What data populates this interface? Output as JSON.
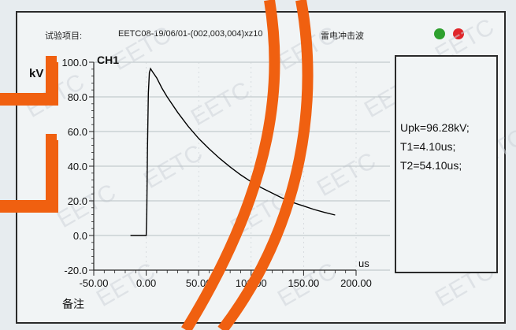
{
  "header": {
    "test_item_label": "试验项目:",
    "test_id": "EETC08-19/06/01-(002,003,004)xz10",
    "wave_type": "雷电冲击波"
  },
  "status_indicators": [
    {
      "name": "green-status-dot",
      "color": "#2ea02e"
    },
    {
      "name": "red-status-dot",
      "color": "#e0262a"
    }
  ],
  "results": {
    "upk": "Upk=96.28kV;",
    "t1": "T1=4.10us;",
    "t2": "T2=54.10us;"
  },
  "footer": {
    "remark_label": "备注"
  },
  "chart_data": {
    "type": "line",
    "title": "CH1",
    "ylabel": "kV",
    "xlabel": "us",
    "xlim": [
      -50,
      200
    ],
    "ylim": [
      -20,
      100
    ],
    "x_ticks": [
      -50,
      0,
      50,
      100,
      150,
      200
    ],
    "x_tick_labels": [
      "-50.00",
      "0.00",
      "50.00",
      "100.00",
      "150.00",
      "200.00"
    ],
    "y_ticks": [
      -20,
      0,
      20,
      40,
      60,
      80,
      100
    ],
    "y_tick_labels": [
      "-20.0",
      "0.0",
      "20.0",
      "40.0",
      "60.0",
      "80.0",
      "100.0"
    ],
    "grid": true,
    "series": [
      {
        "color": "#000000",
        "x": [
          -15,
          -10,
          -5,
          0,
          0.5,
          1.2,
          2.0,
          3.0,
          4.1,
          6,
          10,
          15,
          20,
          30,
          40,
          50,
          60,
          70,
          80,
          90,
          100,
          110,
          120,
          130,
          140,
          150,
          160,
          170,
          180
        ],
        "y": [
          0,
          0,
          0,
          0,
          12,
          50,
          82,
          94,
          96.28,
          94.5,
          91,
          85,
          80,
          71,
          63,
          56,
          50,
          44.5,
          39.5,
          35,
          31,
          27.5,
          24.5,
          21.5,
          19,
          17,
          15,
          13.3,
          11.8
        ]
      }
    ]
  },
  "watermark": {
    "text": "EETC"
  },
  "colors": {
    "overlay_orange": "#f06010",
    "border": "#2a2a2a",
    "background": "#f1f4f5"
  }
}
